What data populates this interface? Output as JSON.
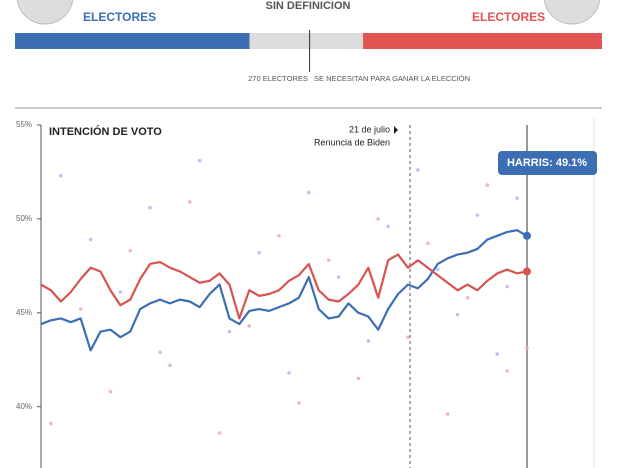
{
  "header": {
    "left_label": "ELECTORES",
    "center_label": "SIN DEFINICION",
    "right_label": "ELECTORES",
    "threshold_label": "270 ELECTORES",
    "threshold_text": "SE NECESITAN PARA GANAR LA ELECCIÓN"
  },
  "electoral_bar": {
    "values": [
      215,
      104,
      219
    ],
    "colors": [
      "#3c6eb4",
      "#dcdcdc",
      "#e05552"
    ],
    "total": 538,
    "threshold": 270
  },
  "chart_data": {
    "type": "line",
    "title": "INTENCIÓN DE VOTO",
    "ylim": [
      37,
      55
    ],
    "yticks": [
      {
        "value": 40,
        "label": "40%"
      },
      {
        "value": 45,
        "label": "45%"
      },
      {
        "value": 50,
        "label": "50%"
      },
      {
        "value": 55,
        "label": "55%"
      }
    ],
    "grid": false,
    "annotation": {
      "date": "21 de julio",
      "text": "Renuncia de Biden"
    },
    "series": [
      {
        "color": "#3c6eb4",
        "end_label": "HARRIS: 49.1%",
        "values": [
          44.4,
          44.6,
          44.7,
          44.5,
          44.7,
          43.0,
          44.0,
          44.1,
          43.7,
          44.0,
          45.2,
          45.5,
          45.7,
          45.5,
          45.7,
          45.6,
          45.3,
          46.0,
          46.5,
          44.7,
          44.4,
          45.1,
          45.2,
          45.1,
          45.3,
          45.5,
          45.8,
          46.9,
          45.2,
          44.7,
          44.8,
          45.5,
          45.0,
          44.8,
          44.1,
          45.2,
          46.0,
          46.5,
          46.3,
          46.8,
          47.6,
          47.9,
          48.1,
          48.2,
          48.4,
          48.9,
          49.1,
          49.3,
          49.4,
          49.1
        ]
      },
      {
        "color": "#d9534f",
        "values": [
          46.5,
          46.2,
          45.6,
          46.1,
          46.8,
          47.4,
          47.2,
          46.2,
          45.4,
          45.7,
          46.8,
          47.6,
          47.7,
          47.4,
          47.2,
          46.9,
          46.6,
          46.7,
          47.1,
          46.5,
          44.7,
          46.2,
          45.9,
          46.0,
          46.2,
          46.7,
          47.0,
          47.6,
          46.2,
          45.7,
          45.6,
          46.0,
          46.5,
          47.4,
          45.8,
          47.8,
          48.1,
          47.4,
          47.8,
          47.4,
          47.0,
          46.6,
          46.2,
          46.5,
          46.2,
          46.7,
          47.1,
          47.3,
          47.1,
          47.2
        ]
      }
    ],
    "polls": [
      {
        "color": "#b4b0ee",
        "x": [
          2,
          5,
          8,
          11,
          13,
          16,
          19,
          22,
          25,
          27,
          30,
          33,
          35,
          38,
          40,
          42,
          44,
          46,
          47,
          48
        ],
        "values": [
          52.3,
          48.9,
          46.1,
          50.6,
          42.2,
          53.1,
          44.0,
          48.2,
          41.8,
          51.4,
          46.9,
          43.5,
          49.6,
          52.6,
          47.3,
          44.9,
          50.2,
          42.8,
          46.4,
          51.1
        ]
      },
      {
        "color": "#eea6a6",
        "x": [
          1,
          4,
          7,
          9,
          12,
          15,
          18,
          21,
          24,
          26,
          29,
          32,
          34,
          37,
          39,
          41,
          43,
          45,
          47,
          49
        ],
        "values": [
          39.1,
          45.2,
          40.8,
          48.3,
          42.9,
          50.9,
          38.6,
          44.3,
          49.1,
          40.2,
          47.8,
          41.5,
          50.0,
          43.7,
          48.7,
          39.6,
          45.8,
          51.8,
          41.9,
          43.1
        ]
      }
    ]
  }
}
